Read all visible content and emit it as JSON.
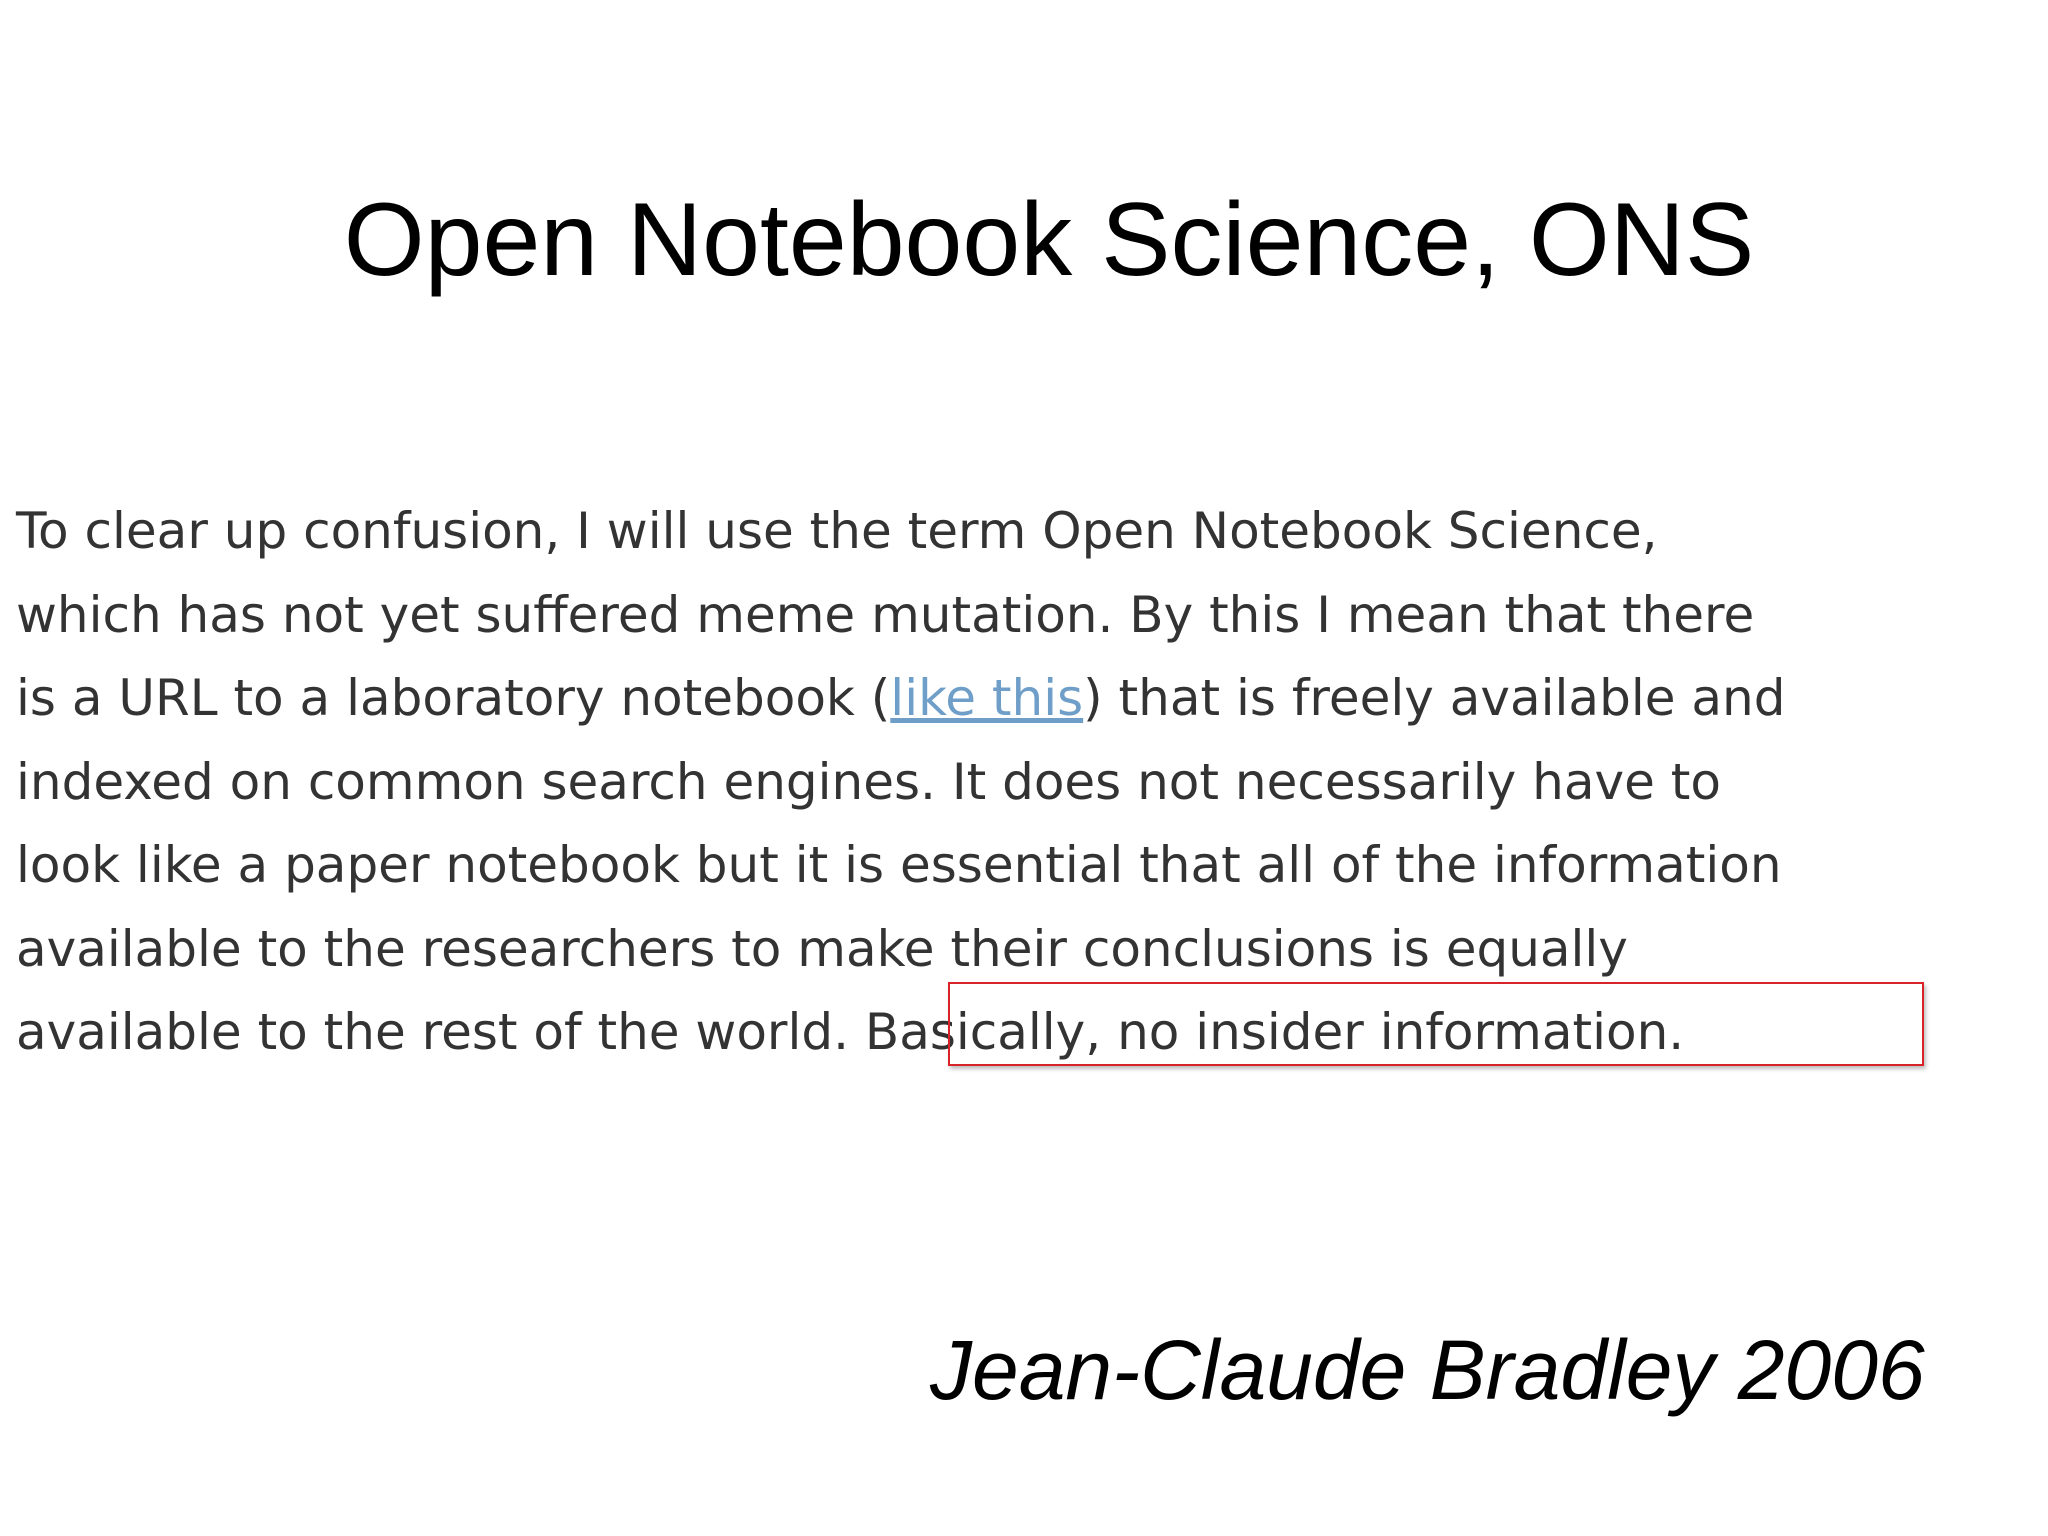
{
  "slide": {
    "title": "Open Notebook Science, ONS",
    "quote": {
      "lines": [
        "To clear up confusion, I will use the term Open Notebook Science,",
        "which has not yet suffered meme mutation. By this I mean that there",
        "indexed on common search engines. It does not necessarily have to",
        "look like a paper notebook but it is essential that all of the information",
        "available to the researchers to make their conclusions is equally"
      ],
      "line3_before": "is a URL to a laboratory notebook (",
      "link_text": "like this",
      "line3_after": ") that is freely available and",
      "last_line_before": "available to the rest of the world. ",
      "highlighted": "Basically, no insider information."
    },
    "attribution": "Jean-Claude Bradley 2006",
    "colors": {
      "link": "#6f9fc8",
      "highlight_box": "#d8232a"
    }
  }
}
